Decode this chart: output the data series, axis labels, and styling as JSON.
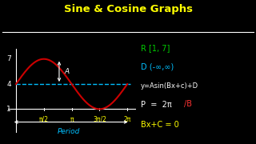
{
  "title": "Sine & Cosine Graphs",
  "title_color": "#FFFF00",
  "bg_color": "#000000",
  "title_fontsize": 9.5,
  "curve_color": "#CC0000",
  "midline_color": "#00BFFF",
  "axis_color": "#FFFFFF",
  "text_color": "#FFFFFF",
  "ytick_labels": [
    "1",
    "4",
    "7"
  ],
  "ytick_vals": [
    1,
    4,
    7
  ],
  "xtick_labels": [
    "π/2",
    "π",
    "3π/2",
    "2π"
  ],
  "xtick_vals": [
    1,
    2,
    3,
    4
  ],
  "xtick_color": "#FFFF00",
  "period_label": "Period",
  "period_color": "#00BFFF",
  "amplitude_label": "A",
  "right_lines": [
    {
      "text": "R [1, 7]",
      "color": "#00CC00",
      "fontsize": 7.0,
      "fy": 0.665
    },
    {
      "text": "D (-∞,∞)",
      "color": "#00BFFF",
      "fontsize": 7.0,
      "fy": 0.535
    },
    {
      "text": "y=Asin(Bx+c)+D",
      "color": "#FFFFFF",
      "fontsize": 6.0,
      "fy": 0.405
    },
    {
      "text": "P  =  2π",
      "color": "#FFFFFF",
      "fontsize": 7.0,
      "fy": 0.275
    },
    {
      "text": "Bx+C = 0",
      "color": "#FFFF00",
      "fontsize": 7.0,
      "fy": 0.135
    }
  ],
  "p_denom_color": "#FF3333",
  "ylim": [
    -1.8,
    8.2
  ],
  "xlim": [
    -0.3,
    4.3
  ]
}
